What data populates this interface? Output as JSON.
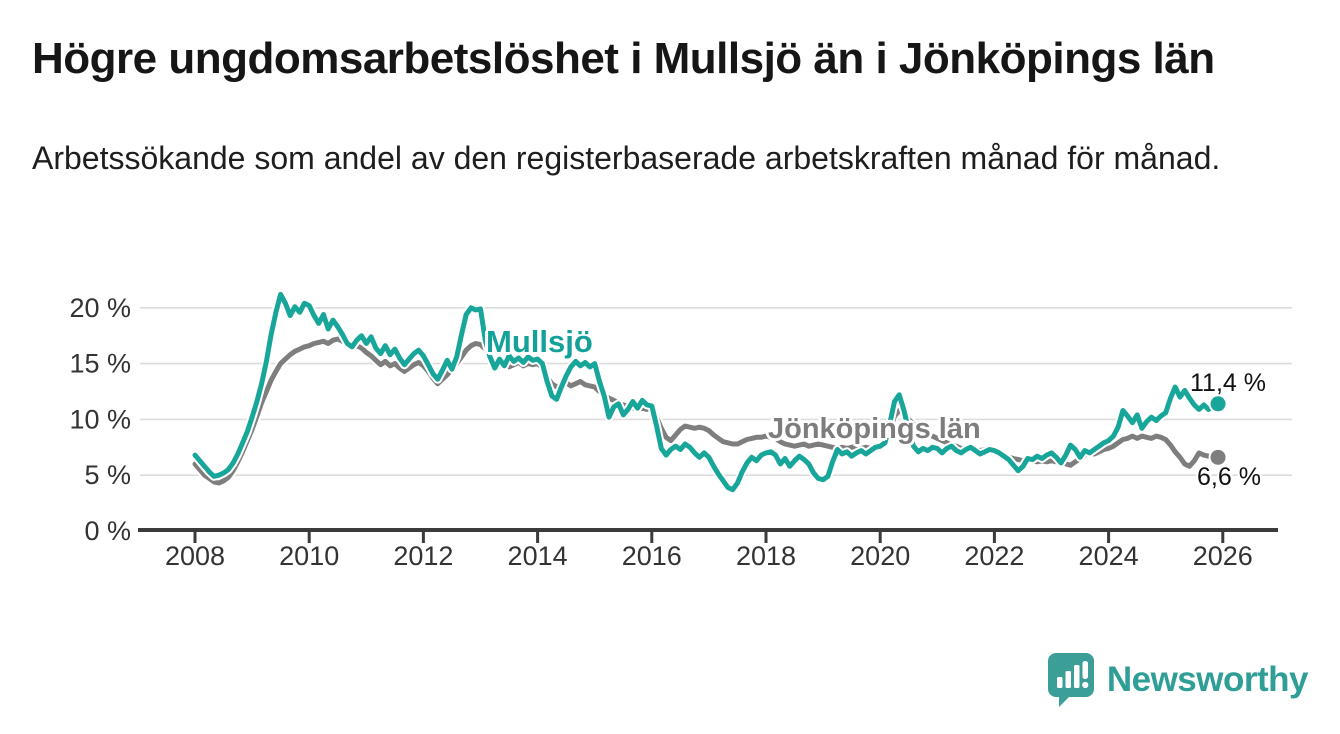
{
  "header": {
    "title": "Högre ungdomsarbetslöshet i Mullsjö än i Jönköpings län",
    "subtitle": "Arbetssökande som andel av den registerbaserade arbetskraften månad för månad."
  },
  "branding": {
    "name": "Newsworthy",
    "icon": "newsworthy-speech-bubble-bar-chart-icon",
    "color": "#2f9e96"
  },
  "colors": {
    "mullsjo": "#18a69b",
    "jonkoping": "#7e7e7e",
    "grid": "#dcdcdc",
    "axis": "#3b3b3b",
    "tick_label": "#333333"
  },
  "chart_data": {
    "type": "line",
    "title": "Högre ungdomsarbetslöshet i Mullsjö än i Jönköpings län",
    "subtitle": "Arbetssökande som andel av den registerbaserade arbetskraften månad för månad.",
    "unit": "%",
    "grid": "horizontal",
    "legend_position": "inline-labels",
    "x_axis": {
      "range": [
        2007,
        2027
      ],
      "ticks": [
        2008,
        2010,
        2012,
        2014,
        2016,
        2018,
        2020,
        2022,
        2024,
        2026
      ],
      "tick_labels": [
        "2008",
        "2010",
        "2012",
        "2014",
        "2016",
        "2018",
        "2020",
        "2022",
        "2024",
        "2026"
      ]
    },
    "y_axis": {
      "range": [
        0,
        22.5
      ],
      "ticks": [
        0,
        5,
        10,
        15,
        20
      ],
      "tick_labels": [
        "0 %",
        "5 %",
        "10 %",
        "15 %",
        "20 %"
      ]
    },
    "series": [
      {
        "name": "Mullsjö",
        "color": "#18a69b",
        "end_label": "11,4 %",
        "last_value": 11.4,
        "start_year": 2008,
        "interval_months": 1,
        "values": [
          6.8,
          6.3,
          5.8,
          5.3,
          4.9,
          5.0,
          5.2,
          5.5,
          6.1,
          6.9,
          7.9,
          8.9,
          10.2,
          11.6,
          13.2,
          15.2,
          17.6,
          19.6,
          21.2,
          20.4,
          19.3,
          20.1,
          19.6,
          20.4,
          20.2,
          19.3,
          18.6,
          19.4,
          18.1,
          18.9,
          18.3,
          17.6,
          16.8,
          16.5,
          17.1,
          17.5,
          16.8,
          17.4,
          16.4,
          15.9,
          16.6,
          15.8,
          16.3,
          15.5,
          14.9,
          15.4,
          15.9,
          16.2,
          15.7,
          14.9,
          14.1,
          13.6,
          14.4,
          15.3,
          14.5,
          15.6,
          17.6,
          19.4,
          20.0,
          19.8,
          19.9,
          17.1,
          15.6,
          14.6,
          15.4,
          14.8,
          15.7,
          15.2,
          15.5,
          15.1,
          15.6,
          15.3,
          15.4,
          15.0,
          13.4,
          12.1,
          11.8,
          12.9,
          13.9,
          14.7,
          15.2,
          14.8,
          15.1,
          14.7,
          15.0,
          13.4,
          12.1,
          10.2,
          11.1,
          11.4,
          10.4,
          10.9,
          11.6,
          11.0,
          11.7,
          11.3,
          11.2,
          9.4,
          7.4,
          6.8,
          7.3,
          7.6,
          7.3,
          7.8,
          7.5,
          7.0,
          6.6,
          7.0,
          6.6,
          5.8,
          5.1,
          4.5,
          3.9,
          3.7,
          4.3,
          5.3,
          6.1,
          6.6,
          6.3,
          6.8,
          7.0,
          7.1,
          6.8,
          6.0,
          6.5,
          5.8,
          6.3,
          6.7,
          6.4,
          6.0,
          5.2,
          4.7,
          4.6,
          4.9,
          6.2,
          7.3,
          6.9,
          7.1,
          6.7,
          7.0,
          7.2,
          6.9,
          7.2,
          7.5,
          7.6,
          7.9,
          9.6,
          11.6,
          12.2,
          10.8,
          8.9,
          7.6,
          7.1,
          7.4,
          7.2,
          7.5,
          7.4,
          7.0,
          7.4,
          7.6,
          7.2,
          7.0,
          7.3,
          7.5,
          7.2,
          6.9,
          7.1,
          7.3,
          7.2,
          7.0,
          6.7,
          6.4,
          5.9,
          5.4,
          5.8,
          6.5,
          6.4,
          6.7,
          6.5,
          6.8,
          7.0,
          6.6,
          6.1,
          6.8,
          7.7,
          7.3,
          6.6,
          7.2,
          7.0,
          7.3,
          7.6,
          7.9,
          8.1,
          8.5,
          9.3,
          10.8,
          10.3,
          9.7,
          10.4,
          9.2,
          9.8,
          10.2,
          9.9,
          10.3,
          10.6,
          11.9,
          12.9,
          12.0,
          12.6,
          11.9,
          11.3,
          10.9,
          11.3,
          10.9,
          11.2,
          11.4
        ]
      },
      {
        "name": "Jönköpings län",
        "color": "#7e7e7e",
        "end_label": "6,6 %",
        "last_value": 6.6,
        "start_year": 2008,
        "interval_months": 1,
        "values": [
          6.0,
          5.5,
          5.0,
          4.7,
          4.4,
          4.3,
          4.5,
          4.8,
          5.4,
          6.2,
          7.1,
          8.1,
          9.1,
          10.3,
          11.5,
          12.5,
          13.5,
          14.3,
          15.0,
          15.4,
          15.8,
          16.1,
          16.3,
          16.5,
          16.6,
          16.8,
          16.9,
          17.0,
          16.8,
          17.1,
          17.2,
          17.0,
          16.8,
          16.5,
          16.6,
          16.4,
          16.0,
          15.7,
          15.3,
          14.9,
          15.2,
          14.8,
          15.0,
          14.6,
          14.3,
          14.6,
          14.9,
          15.1,
          14.8,
          14.3,
          13.7,
          13.2,
          13.6,
          14.0,
          14.5,
          15.0,
          15.6,
          16.2,
          16.6,
          16.8,
          16.7,
          16.3,
          15.8,
          15.2,
          14.8,
          15.0,
          14.7,
          14.9,
          15.1,
          14.8,
          15.0,
          14.9,
          15.0,
          14.6,
          13.8,
          13.2,
          12.9,
          13.1,
          13.3,
          13.0,
          13.2,
          13.4,
          13.1,
          13.0,
          12.9,
          12.5,
          12.2,
          11.9,
          11.7,
          11.5,
          11.3,
          11.2,
          11.0,
          10.9,
          11.0,
          10.9,
          11.0,
          10.2,
          9.2,
          8.4,
          8.1,
          8.6,
          9.1,
          9.4,
          9.3,
          9.2,
          9.3,
          9.2,
          9.0,
          8.6,
          8.3,
          8.0,
          7.9,
          7.8,
          7.8,
          8.0,
          8.2,
          8.3,
          8.4,
          8.4,
          8.5,
          8.4,
          8.3,
          8.0,
          7.8,
          7.7,
          7.6,
          7.7,
          7.8,
          7.6,
          7.7,
          7.8,
          7.7,
          7.6,
          7.5,
          7.4,
          7.5,
          7.4,
          7.5,
          7.6,
          7.4,
          7.5,
          7.4,
          7.6,
          7.7,
          7.9,
          8.9,
          10.3,
          10.8,
          10.5,
          10.0,
          9.6,
          9.2,
          8.9,
          8.6,
          8.5,
          8.3,
          8.1,
          7.9,
          7.7,
          7.6,
          7.4,
          7.3,
          7.4,
          7.3,
          7.2,
          7.3,
          7.3,
          7.3,
          7.0,
          6.8,
          6.6,
          6.5,
          6.4,
          6.3,
          6.4,
          6.3,
          6.2,
          6.3,
          6.2,
          6.3,
          6.2,
          6.1,
          6.0,
          5.9,
          6.2,
          6.5,
          6.8,
          7.0,
          6.9,
          7.1,
          7.3,
          7.4,
          7.6,
          7.9,
          8.2,
          8.3,
          8.5,
          8.3,
          8.5,
          8.4,
          8.3,
          8.5,
          8.4,
          8.2,
          7.7,
          7.1,
          6.6,
          6.0,
          5.8,
          6.3,
          7.0,
          6.8,
          6.7,
          6.6,
          6.6
        ]
      }
    ]
  }
}
